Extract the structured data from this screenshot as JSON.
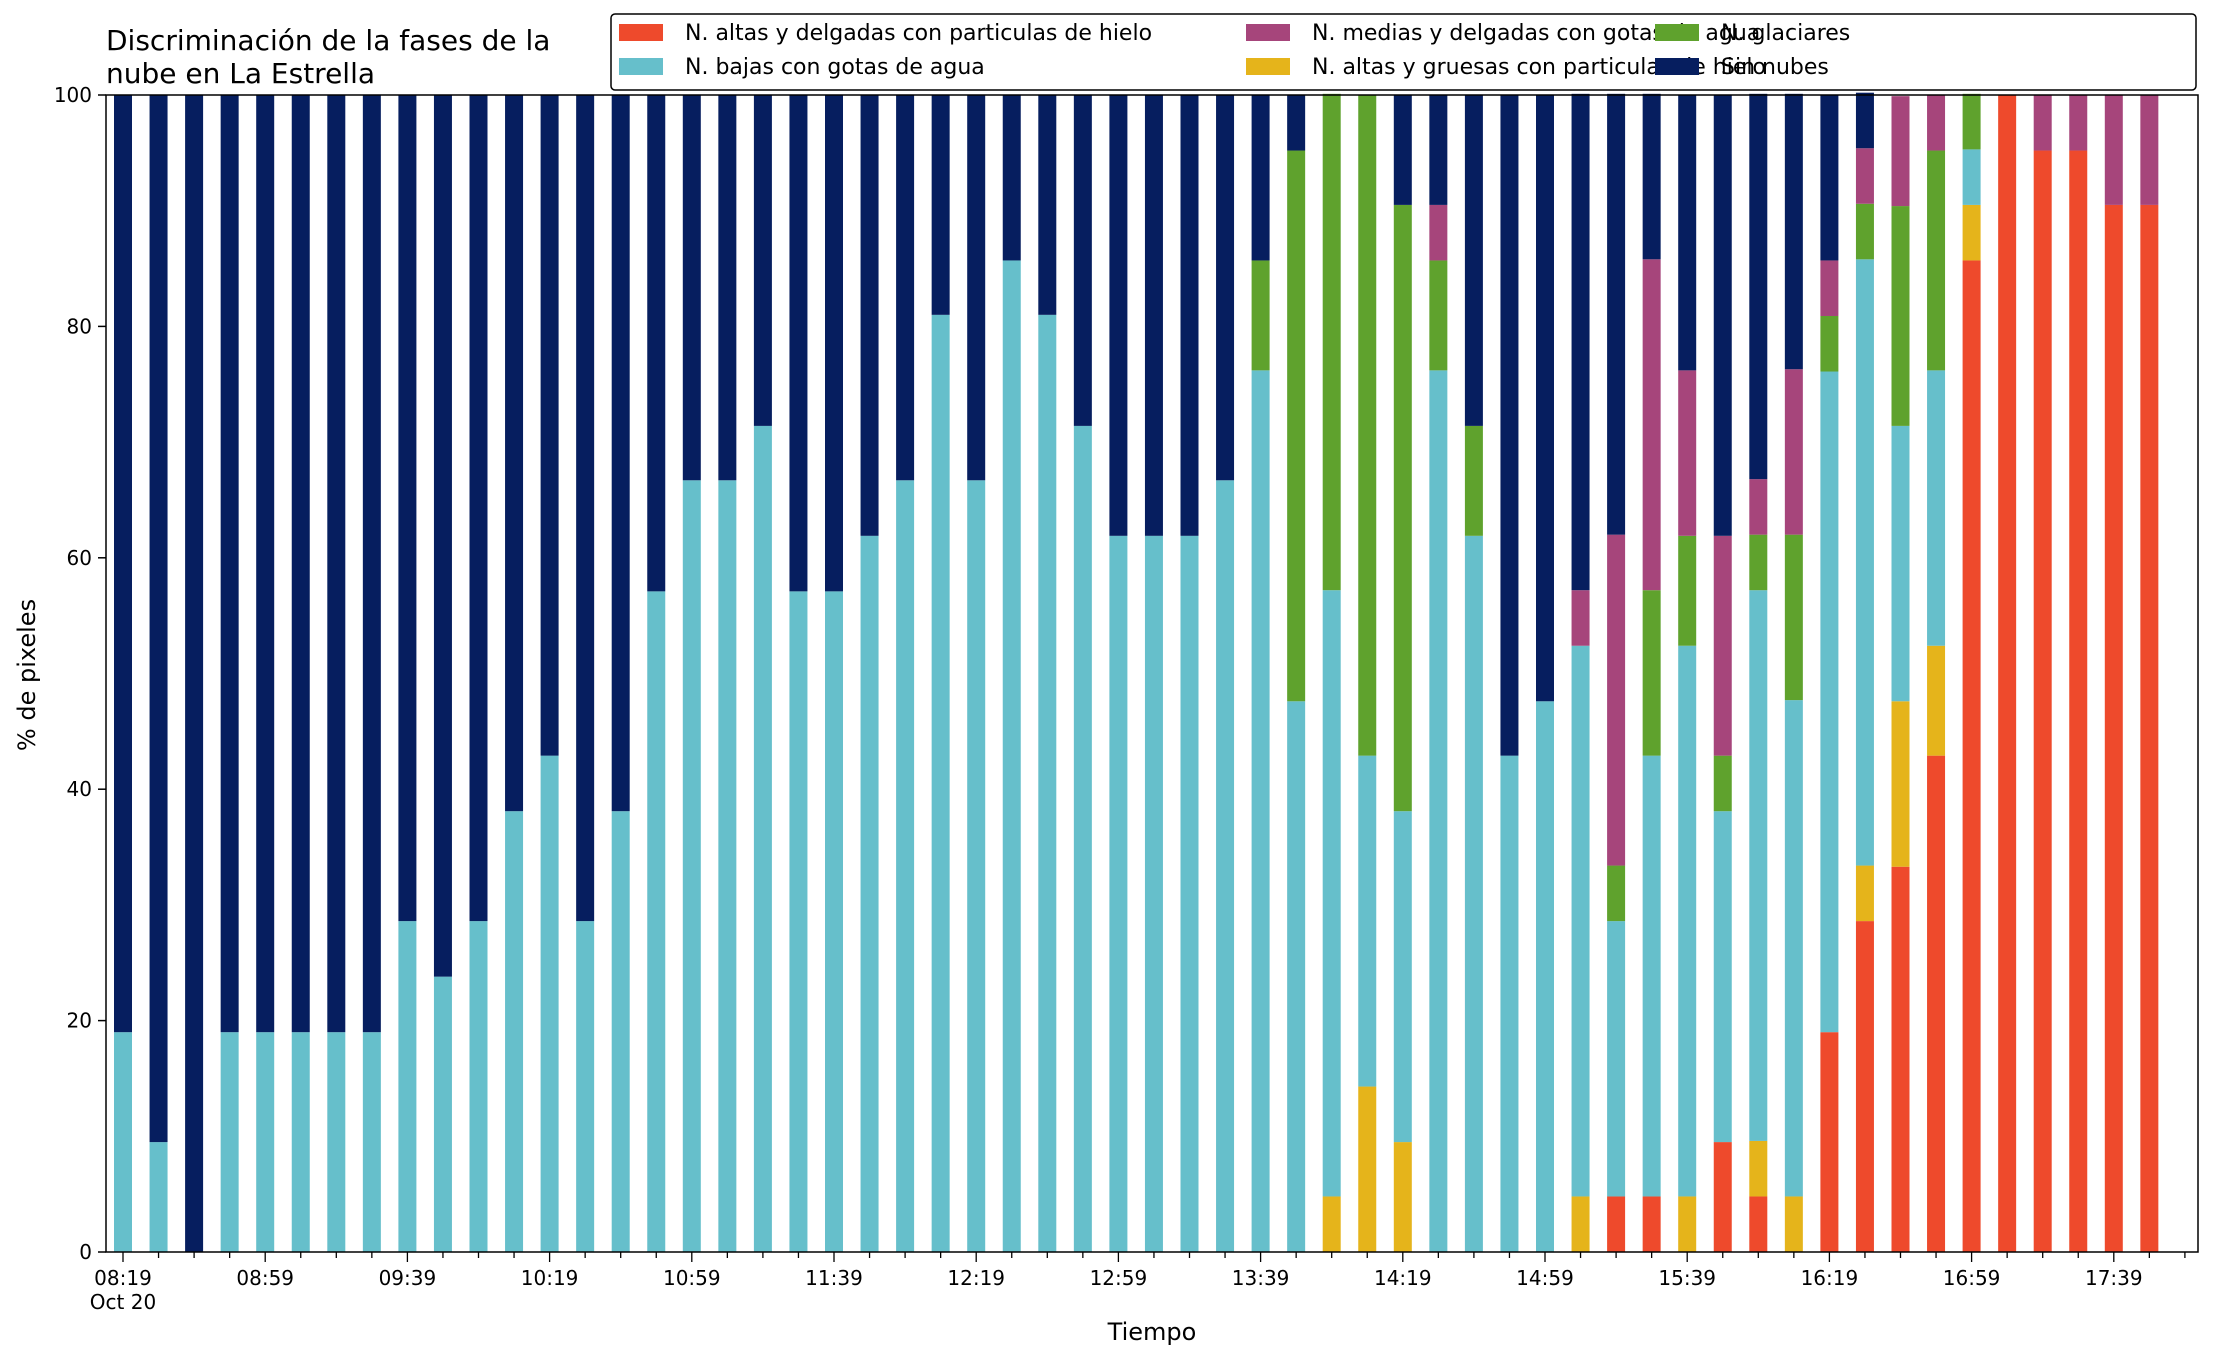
{
  "chart_data": {
    "type": "bar",
    "stacked": true,
    "title_lines": [
      "Discriminación de la fases de la",
      "nube en La Estrella"
    ],
    "xlabel": "Tiempo",
    "ylabel": "% de pixeles",
    "ylim": [
      0,
      100
    ],
    "yticks": [
      0,
      20,
      40,
      60,
      80,
      100
    ],
    "x_sublabel": "Oct 20",
    "legend_position": "top-right",
    "legend_order": [
      "ice_thin",
      "water_low",
      "mixed_mid",
      "ice_thick",
      "glacial",
      "clear"
    ],
    "series": [
      {
        "key": "ice_thin",
        "name": "N. altas y delgadas con particulas de hielo",
        "color": "#ee4a2c"
      },
      {
        "key": "ice_thick",
        "name": "N. altas y gruesas con particulas de hielo",
        "color": "#e5b41b"
      },
      {
        "key": "water_low",
        "name": "N. bajas con gotas de agua",
        "color": "#66bfcb"
      },
      {
        "key": "glacial",
        "name": "N. glaciares",
        "color": "#5fa22d"
      },
      {
        "key": "mixed_mid",
        "name": "N. medias y delgadas con gotas de agua",
        "color": "#a6457b"
      },
      {
        "key": "clear",
        "name": "Sin nubes",
        "color": "#061e5f"
      }
    ],
    "stack_order": [
      "ice_thin",
      "ice_thick",
      "water_low",
      "glacial",
      "mixed_mid",
      "clear"
    ],
    "times": [
      "08:19",
      "08:29",
      "08:39",
      "08:49",
      "08:59",
      "09:09",
      "09:19",
      "09:29",
      "09:39",
      "09:49",
      "09:59",
      "10:09",
      "10:19",
      "10:29",
      "10:39",
      "10:49",
      "10:59",
      "11:09",
      "11:19",
      "11:29",
      "11:39",
      "11:49",
      "11:59",
      "12:09",
      "12:19",
      "12:29",
      "12:39",
      "12:49",
      "12:59",
      "13:09",
      "13:19",
      "13:29",
      "13:39",
      "13:49",
      "13:59",
      "14:09",
      "14:19",
      "14:29",
      "14:39",
      "14:49",
      "14:59",
      "15:09",
      "15:19",
      "15:29",
      "15:39",
      "15:49",
      "15:59",
      "16:09",
      "16:19",
      "16:29",
      "16:39",
      "16:49",
      "16:59",
      "17:09",
      "17:19",
      "17:29",
      "17:39",
      "17:49"
    ],
    "xtick_labels": [
      "08:19",
      "08:59",
      "09:39",
      "10:19",
      "10:59",
      "11:39",
      "12:19",
      "12:59",
      "13:39",
      "14:19",
      "14:59",
      "15:39",
      "16:19",
      "16:59",
      "17:39"
    ],
    "values": [
      {
        "ice_thin": 0,
        "ice_thick": 0,
        "water_low": 19,
        "glacial": 0,
        "mixed_mid": 0,
        "clear": 81
      },
      {
        "ice_thin": 0,
        "ice_thick": 0,
        "water_low": 9.5,
        "glacial": 0,
        "mixed_mid": 0,
        "clear": 90.5
      },
      {
        "ice_thin": 0,
        "ice_thick": 0,
        "water_low": 0,
        "glacial": 0,
        "mixed_mid": 0,
        "clear": 100
      },
      {
        "ice_thin": 0,
        "ice_thick": 0,
        "water_low": 19,
        "glacial": 0,
        "mixed_mid": 0,
        "clear": 81
      },
      {
        "ice_thin": 0,
        "ice_thick": 0,
        "water_low": 19,
        "glacial": 0,
        "mixed_mid": 0,
        "clear": 81
      },
      {
        "ice_thin": 0,
        "ice_thick": 0,
        "water_low": 19,
        "glacial": 0,
        "mixed_mid": 0,
        "clear": 81
      },
      {
        "ice_thin": 0,
        "ice_thick": 0,
        "water_low": 19,
        "glacial": 0,
        "mixed_mid": 0,
        "clear": 81
      },
      {
        "ice_thin": 0,
        "ice_thick": 0,
        "water_low": 19,
        "glacial": 0,
        "mixed_mid": 0,
        "clear": 81
      },
      {
        "ice_thin": 0,
        "ice_thick": 0,
        "water_low": 28.6,
        "glacial": 0,
        "mixed_mid": 0,
        "clear": 71.4
      },
      {
        "ice_thin": 0,
        "ice_thick": 0,
        "water_low": 23.8,
        "glacial": 0,
        "mixed_mid": 0,
        "clear": 76.2
      },
      {
        "ice_thin": 0,
        "ice_thick": 0,
        "water_low": 28.6,
        "glacial": 0,
        "mixed_mid": 0,
        "clear": 71.4
      },
      {
        "ice_thin": 0,
        "ice_thick": 0,
        "water_low": 38.1,
        "glacial": 0,
        "mixed_mid": 0,
        "clear": 61.9
      },
      {
        "ice_thin": 0,
        "ice_thick": 0,
        "water_low": 42.9,
        "glacial": 0,
        "mixed_mid": 0,
        "clear": 57.1
      },
      {
        "ice_thin": 0,
        "ice_thick": 0,
        "water_low": 28.6,
        "glacial": 0,
        "mixed_mid": 0,
        "clear": 71.4
      },
      {
        "ice_thin": 0,
        "ice_thick": 0,
        "water_low": 38.1,
        "glacial": 0,
        "mixed_mid": 0,
        "clear": 61.9
      },
      {
        "ice_thin": 0,
        "ice_thick": 0,
        "water_low": 57.1,
        "glacial": 0,
        "mixed_mid": 0,
        "clear": 42.9
      },
      {
        "ice_thin": 0,
        "ice_thick": 0,
        "water_low": 66.7,
        "glacial": 0,
        "mixed_mid": 0,
        "clear": 33.3
      },
      {
        "ice_thin": 0,
        "ice_thick": 0,
        "water_low": 66.7,
        "glacial": 0,
        "mixed_mid": 0,
        "clear": 33.3
      },
      {
        "ice_thin": 0,
        "ice_thick": 0,
        "water_low": 71.4,
        "glacial": 0,
        "mixed_mid": 0,
        "clear": 28.6
      },
      {
        "ice_thin": 0,
        "ice_thick": 0,
        "water_low": 57.1,
        "glacial": 0,
        "mixed_mid": 0,
        "clear": 42.9
      },
      {
        "ice_thin": 0,
        "ice_thick": 0,
        "water_low": 57.1,
        "glacial": 0,
        "mixed_mid": 0,
        "clear": 42.9
      },
      {
        "ice_thin": 0,
        "ice_thick": 0,
        "water_low": 61.9,
        "glacial": 0,
        "mixed_mid": 0,
        "clear": 38.1
      },
      {
        "ice_thin": 0,
        "ice_thick": 0,
        "water_low": 66.7,
        "glacial": 0,
        "mixed_mid": 0,
        "clear": 33.3
      },
      {
        "ice_thin": 0,
        "ice_thick": 0,
        "water_low": 81,
        "glacial": 0,
        "mixed_mid": 0,
        "clear": 19
      },
      {
        "ice_thin": 0,
        "ice_thick": 0,
        "water_low": 66.7,
        "glacial": 0,
        "mixed_mid": 0,
        "clear": 33.3
      },
      {
        "ice_thin": 0,
        "ice_thick": 0,
        "water_low": 85.7,
        "glacial": 0,
        "mixed_mid": 0,
        "clear": 14.3
      },
      {
        "ice_thin": 0,
        "ice_thick": 0,
        "water_low": 81,
        "glacial": 0,
        "mixed_mid": 0,
        "clear": 19
      },
      {
        "ice_thin": 0,
        "ice_thick": 0,
        "water_low": 71.4,
        "glacial": 0,
        "mixed_mid": 0,
        "clear": 28.6
      },
      {
        "ice_thin": 0,
        "ice_thick": 0,
        "water_low": 61.9,
        "glacial": 0,
        "mixed_mid": 0,
        "clear": 38.1
      },
      {
        "ice_thin": 0,
        "ice_thick": 0,
        "water_low": 61.9,
        "glacial": 0,
        "mixed_mid": 0,
        "clear": 38.1
      },
      {
        "ice_thin": 0,
        "ice_thick": 0,
        "water_low": 61.9,
        "glacial": 0,
        "mixed_mid": 0,
        "clear": 38.1
      },
      {
        "ice_thin": 0,
        "ice_thick": 0,
        "water_low": 66.7,
        "glacial": 0,
        "mixed_mid": 0,
        "clear": 33.3
      },
      {
        "ice_thin": 0,
        "ice_thick": 0,
        "water_low": 76.2,
        "glacial": 9.5,
        "mixed_mid": 0,
        "clear": 14.3
      },
      {
        "ice_thin": 0,
        "ice_thick": 0,
        "water_low": 47.6,
        "glacial": 47.6,
        "mixed_mid": 0,
        "clear": 4.8
      },
      {
        "ice_thin": 0,
        "ice_thick": 4.8,
        "water_low": 52.4,
        "glacial": 42.9,
        "mixed_mid": 0,
        "clear": 0
      },
      {
        "ice_thin": 0,
        "ice_thick": 14.3,
        "water_low": 28.6,
        "glacial": 57.1,
        "mixed_mid": 0,
        "clear": 0
      },
      {
        "ice_thin": 0,
        "ice_thick": 9.5,
        "water_low": 28.6,
        "glacial": 52.4,
        "mixed_mid": 0,
        "clear": 9.5
      },
      {
        "ice_thin": 0,
        "ice_thick": 0,
        "water_low": 76.2,
        "glacial": 9.5,
        "mixed_mid": 4.8,
        "clear": 9.5
      },
      {
        "ice_thin": 0,
        "ice_thick": 0,
        "water_low": 61.9,
        "glacial": 9.5,
        "mixed_mid": 0,
        "clear": 28.6
      },
      {
        "ice_thin": 0,
        "ice_thick": 0,
        "water_low": 42.9,
        "glacial": 0,
        "mixed_mid": 0,
        "clear": 57.1
      },
      {
        "ice_thin": 0,
        "ice_thick": 0,
        "water_low": 47.6,
        "glacial": 0,
        "mixed_mid": 0,
        "clear": 52.4
      },
      {
        "ice_thin": 0,
        "ice_thick": 4.8,
        "water_low": 47.6,
        "glacial": 0,
        "mixed_mid": 4.8,
        "clear": 42.9
      },
      {
        "ice_thin": 4.8,
        "ice_thick": 0,
        "water_low": 23.8,
        "glacial": 4.8,
        "mixed_mid": 28.6,
        "clear": 38.1
      },
      {
        "ice_thin": 4.8,
        "ice_thick": 0,
        "water_low": 38.1,
        "glacial": 14.3,
        "mixed_mid": 28.6,
        "clear": 14.3
      },
      {
        "ice_thin": 0,
        "ice_thick": 4.8,
        "water_low": 47.6,
        "glacial": 9.5,
        "mixed_mid": 14.3,
        "clear": 23.8
      },
      {
        "ice_thin": 9.5,
        "ice_thick": 0,
        "water_low": 28.6,
        "glacial": 4.8,
        "mixed_mid": 19,
        "clear": 38.1
      },
      {
        "ice_thin": 4.8,
        "ice_thick": 4.8,
        "water_low": 47.6,
        "glacial": 4.8,
        "mixed_mid": 4.8,
        "clear": 33.3
      },
      {
        "ice_thin": 0,
        "ice_thick": 4.8,
        "water_low": 42.9,
        "glacial": 14.3,
        "mixed_mid": 14.3,
        "clear": 23.8
      },
      {
        "ice_thin": 19,
        "ice_thick": 0,
        "water_low": 57.1,
        "glacial": 4.8,
        "mixed_mid": 4.8,
        "clear": 14.3
      },
      {
        "ice_thin": 28.6,
        "ice_thick": 4.8,
        "water_low": 52.4,
        "glacial": 4.8,
        "mixed_mid": 4.8,
        "clear": 4.8
      },
      {
        "ice_thin": 33.3,
        "ice_thick": 14.3,
        "water_low": 23.8,
        "glacial": 19,
        "mixed_mid": 9.5,
        "clear": 0
      },
      {
        "ice_thin": 42.9,
        "ice_thick": 9.5,
        "water_low": 23.8,
        "glacial": 19,
        "mixed_mid": 4.8,
        "clear": 0
      },
      {
        "ice_thin": 85.7,
        "ice_thick": 4.8,
        "water_low": 4.8,
        "glacial": 4.8,
        "mixed_mid": 0,
        "clear": 0
      },
      {
        "ice_thin": 100,
        "ice_thick": 0,
        "water_low": 0,
        "glacial": 0,
        "mixed_mid": 0,
        "clear": 0
      },
      {
        "ice_thin": 95.2,
        "ice_thick": 0,
        "water_low": 0,
        "glacial": 0,
        "mixed_mid": 4.8,
        "clear": 0
      },
      {
        "ice_thin": 95.2,
        "ice_thick": 0,
        "water_low": 0,
        "glacial": 0,
        "mixed_mid": 4.8,
        "clear": 0
      },
      {
        "ice_thin": 90.5,
        "ice_thick": 0,
        "water_low": 0,
        "glacial": 0,
        "mixed_mid": 9.5,
        "clear": 0
      },
      {
        "ice_thin": 90.5,
        "ice_thick": 0,
        "water_low": 0,
        "glacial": 0,
        "mixed_mid": 9.5,
        "clear": 0
      }
    ]
  }
}
